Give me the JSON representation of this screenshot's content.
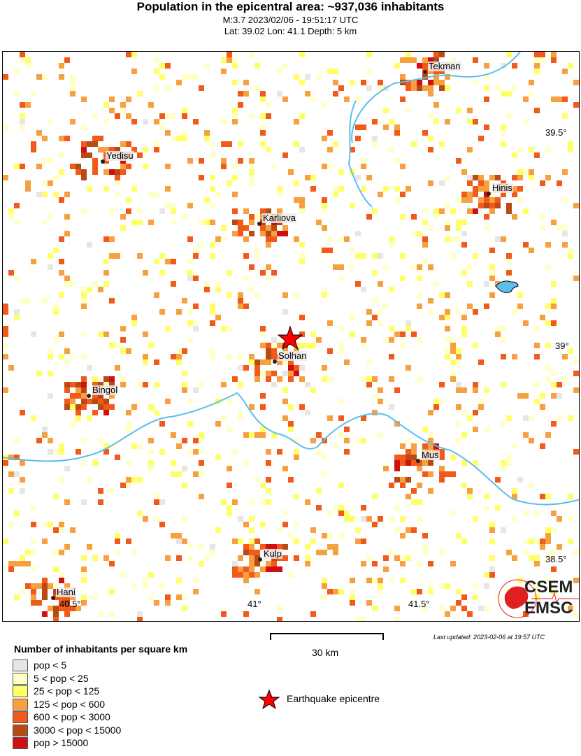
{
  "header": {
    "title": "Population in the epicentral area: ~937,036 inhabitants",
    "line1": "M:3.7 2023/02/06 - 19:51:17 UTC",
    "line2": "Lat: 39.02 Lon: 41.1 Depth: 5 km"
  },
  "cities": [
    {
      "name": "Tekman"
    },
    {
      "name": "Yedisu"
    },
    {
      "name": "Hinis"
    },
    {
      "name": "Karliova"
    },
    {
      "name": "Solhan"
    },
    {
      "name": "Bingol"
    },
    {
      "name": "Mus"
    },
    {
      "name": "Kulp"
    },
    {
      "name": "Hani"
    }
  ],
  "axes": {
    "lon_ticks": [
      "40.5°",
      "41°",
      "41.5°"
    ],
    "lat_ticks": [
      "39.5°",
      "39°",
      "38.5°"
    ]
  },
  "legend": {
    "title": "Number of inhabitants per square km",
    "items": [
      {
        "label": "pop < 5",
        "color": "#e6e6e6"
      },
      {
        "label": "5 < pop < 25",
        "color": "#ffffc8"
      },
      {
        "label": "25 < pop < 125",
        "color": "#ffff66"
      },
      {
        "label": "125 < pop < 600",
        "color": "#f7a040"
      },
      {
        "label": "600 < pop < 3000",
        "color": "#f25a1a"
      },
      {
        "label": "3000 < pop < 15000",
        "color": "#b84a14"
      },
      {
        "label": "pop > 15000",
        "color": "#d01010"
      }
    ]
  },
  "scale": {
    "label": "30 km"
  },
  "epicentre": {
    "label": "Earthquake epicentre",
    "color": "#ff0000"
  },
  "updated": "Last updated: 2023-02-06 at 19:57 UTC",
  "logo": {
    "top": "CSEM",
    "bottom": "EMSC",
    "color": "#e02020"
  },
  "water_color": "#5bbfea"
}
